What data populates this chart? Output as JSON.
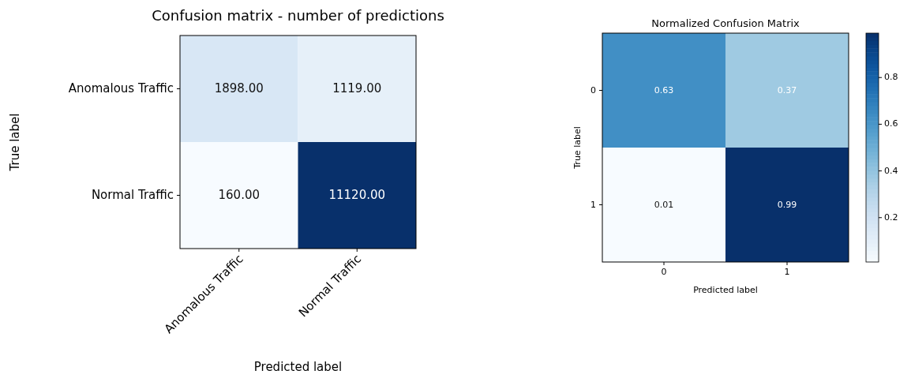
{
  "chart_data": [
    {
      "type": "heatmap",
      "title": "Confusion matrix - number of predictions",
      "xlabel": "Predicted label",
      "ylabel": "True label",
      "categories": [
        "Anomalous Traffic",
        "Normal Traffic"
      ],
      "y_categories": [
        "Anomalous Traffic",
        "Normal Traffic"
      ],
      "cells": [
        [
          1898,
          1119
        ],
        [
          160,
          11120
        ]
      ],
      "cell_labels": [
        [
          "1898.00",
          "1119.00"
        ],
        [
          "160.00",
          "11120.00"
        ]
      ]
    },
    {
      "type": "heatmap",
      "title": "Normalized Confusion Matrix",
      "xlabel": "Predicted label",
      "ylabel": "True label",
      "categories": [
        "0",
        "1"
      ],
      "y_categories": [
        "0",
        "1"
      ],
      "cells": [
        [
          0.63,
          0.37
        ],
        [
          0.01,
          0.99
        ]
      ],
      "data_labels": true,
      "clim": [
        0.01,
        0.99
      ],
      "cticks": [
        0.2,
        0.4,
        0.6,
        0.8
      ]
    }
  ]
}
